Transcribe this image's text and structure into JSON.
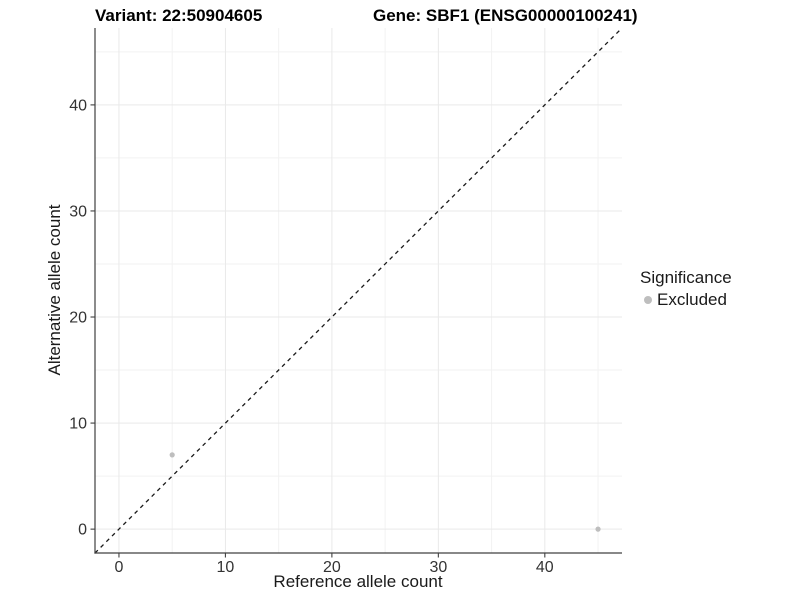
{
  "chart_data": {
    "type": "scatter",
    "title_left": "Variant: 22:50904605",
    "title_right": "Gene: SBF1 (ENSG00000100241)",
    "xlabel": "Reference allele count",
    "ylabel": "Alternative allele count",
    "xlim": [
      -2.25,
      47.25
    ],
    "ylim": [
      -2.25,
      47.25
    ],
    "x_major_ticks": [
      0,
      10,
      20,
      30,
      40
    ],
    "x_minor_ticks": [
      5,
      15,
      25,
      35,
      45
    ],
    "y_major_ticks": [
      0,
      10,
      20,
      30,
      40
    ],
    "y_minor_ticks": [
      5,
      15,
      25,
      35,
      45
    ],
    "grid": true,
    "series": [
      {
        "name": "Excluded",
        "color": "#bebebe",
        "points": [
          {
            "x": 5,
            "y": 7
          },
          {
            "x": 45,
            "y": 0
          }
        ]
      }
    ],
    "reference_line": {
      "type": "identity",
      "dashed": true,
      "color": "#1a1a1a"
    },
    "legend": {
      "title": "Significance",
      "position": "right",
      "items": [
        {
          "label": "Excluded",
          "color": "#bebebe"
        }
      ]
    },
    "style_colors": {
      "axis_line": "#404040",
      "tick_label": "#333333",
      "grid_major": "#e9e9e9",
      "grid_minor": "#f2f2f2",
      "point": "#bebebe"
    }
  }
}
